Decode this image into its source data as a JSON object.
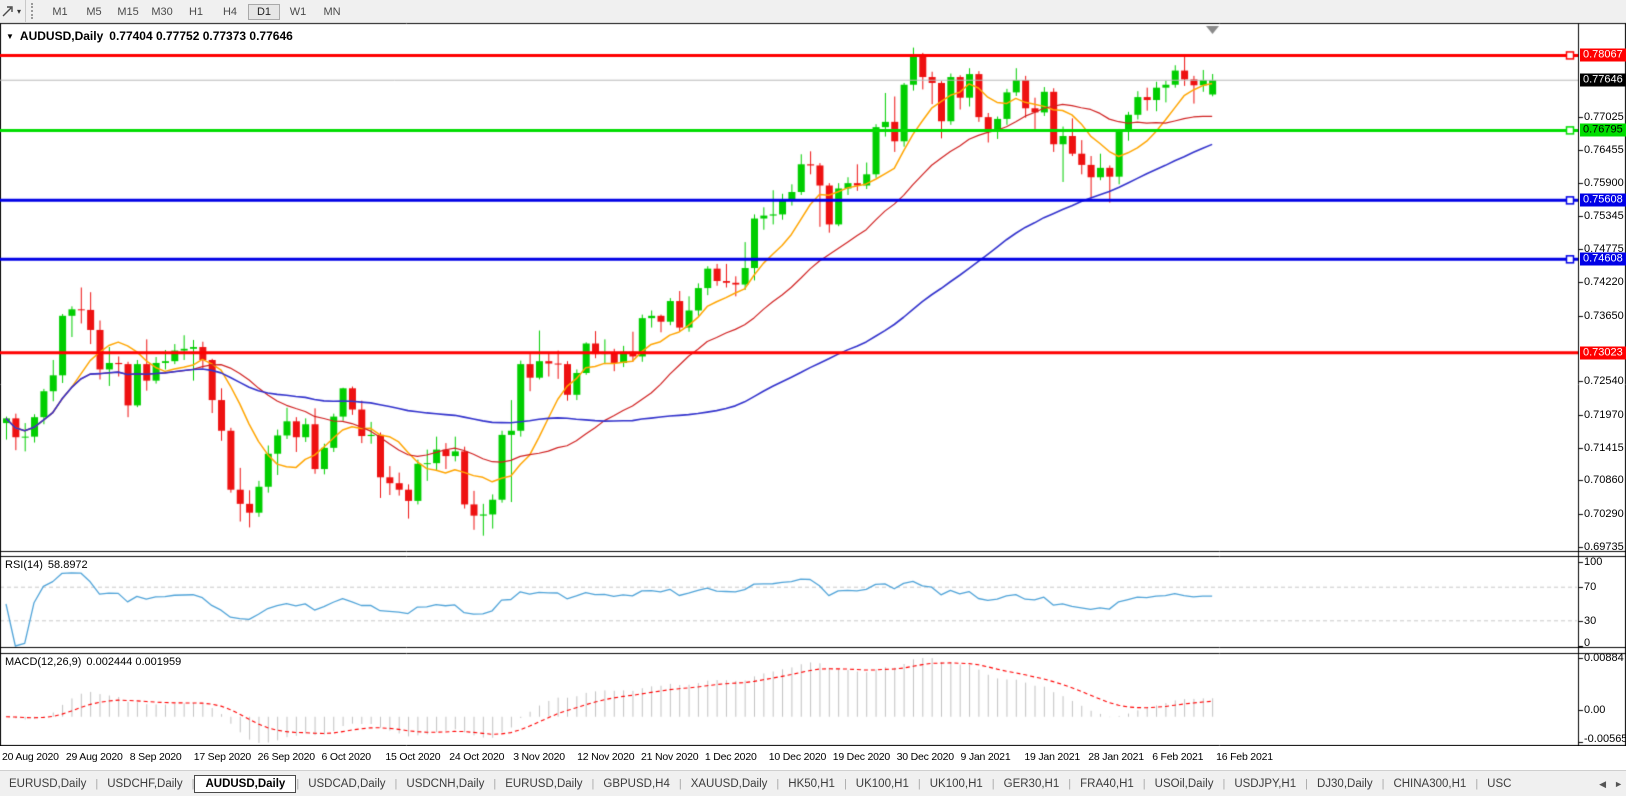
{
  "toolbar": {
    "dropdown_icon": "▾",
    "timeframes": [
      {
        "label": "M1",
        "active": false
      },
      {
        "label": "M5",
        "active": false
      },
      {
        "label": "M15",
        "active": false
      },
      {
        "label": "M30",
        "active": false
      },
      {
        "label": "H1",
        "active": false
      },
      {
        "label": "H4",
        "active": false
      },
      {
        "label": "D1",
        "active": true
      },
      {
        "label": "W1",
        "active": false
      },
      {
        "label": "MN",
        "active": false
      }
    ]
  },
  "chart": {
    "title": {
      "caret": "▼",
      "symbol": "AUDUSD,Daily",
      "ohlc": "0.77404 0.77752 0.77373 0.77646"
    }
  },
  "indicators": {
    "rsi": {
      "label": "RSI(14)",
      "value": "58.8972"
    },
    "macd": {
      "label": "MACD(12,26,9)",
      "value": "0.002444 0.001959"
    }
  },
  "chart_data": {
    "type": "candlestick",
    "symbol": "AUDUSD",
    "timeframe": "Daily",
    "current_bar": {
      "open": 0.77404,
      "high": 0.77752,
      "low": 0.77373,
      "close": 0.77646
    },
    "colors": {
      "up": "#00CE00",
      "down": "#EE1111"
    },
    "price_axis": {
      "ylim": {
        "top": 0.786,
        "bottom": 0.6966
      },
      "ticks": [
        "0.77025",
        "0.76455",
        "0.75900",
        "0.75345",
        "0.74775",
        "0.74220",
        "0.73650",
        "0.72540",
        "0.71970",
        "0.71415",
        "0.70860",
        "0.70290",
        "0.69735"
      ],
      "labels": [
        {
          "text": "0.78067",
          "price": 0.78067,
          "bg": "#FF0000",
          "fg": "#FFFFFF"
        },
        {
          "text": "0.77646",
          "price": 0.77646,
          "bg": "#000000",
          "fg": "#FFFFFF"
        },
        {
          "text": "0.76795",
          "price": 0.76795,
          "bg": "#00DD00",
          "fg": "#000000"
        },
        {
          "text": "0.75608",
          "price": 0.75608,
          "bg": "#0000E6",
          "fg": "#FFFFFF"
        },
        {
          "text": "0.74608",
          "price": 0.74608,
          "bg": "#0000E6",
          "fg": "#FFFFFF"
        },
        {
          "text": "0.73023",
          "price": 0.73023,
          "bg": "#FF0000",
          "fg": "#FFFFFF"
        }
      ]
    },
    "hlines": [
      {
        "price": 0.78067,
        "color": "#FF0000",
        "width": 3,
        "marker": true,
        "role": "resistance"
      },
      {
        "price": 0.76795,
        "color": "#00DD00",
        "width": 3,
        "marker": true,
        "role": "support"
      },
      {
        "price": 0.75608,
        "color": "#0000E6",
        "width": 3,
        "marker": true,
        "role": "support"
      },
      {
        "price": 0.74608,
        "color": "#0000E6",
        "width": 3,
        "marker": true,
        "role": "support"
      },
      {
        "price": 0.73023,
        "color": "#FF0000",
        "width": 3,
        "marker": false,
        "role": "support"
      }
    ],
    "current_price_line": {
      "price": 0.77646,
      "color": "#B8B8B8"
    },
    "moving_averages": [
      {
        "period": 8,
        "color": "#FFA500",
        "width": 1.5
      },
      {
        "period": 21,
        "color": "#D02020",
        "width": 1.2
      },
      {
        "period": 55,
        "color": "#3232CC",
        "width": 1.6
      }
    ],
    "rsi": {
      "period": 14,
      "color": "#4FA3D8",
      "levels": [
        70,
        30
      ],
      "axis_labels": [
        "100",
        "70",
        "30",
        "0"
      ]
    },
    "macd": {
      "fast": 12,
      "slow": 26,
      "signal": 9,
      "hist_color": "#C2C2C2",
      "signal_color": "#FF0000",
      "axis_labels": [
        {
          "text": "0.00884",
          "value": 0.00884
        },
        {
          "text": "0.00",
          "value": 0
        },
        {
          "text": "-0.005651",
          "value": -0.005651
        }
      ]
    },
    "date_labels": [
      "20 Aug 2020",
      "29 Aug 2020",
      "8 Sep 2020",
      "17 Sep 2020",
      "26 Sep 2020",
      "6 Oct 2020",
      "15 Oct 2020",
      "24 Oct 2020",
      "3 Nov 2020",
      "12 Nov 2020",
      "21 Nov 2020",
      "1 Dec 2020",
      "10 Dec 2020",
      "19 Dec 2020",
      "30 Dec 2020",
      "9 Jan 2021",
      "19 Jan 2021",
      "28 Jan 2021",
      "6 Feb 2021",
      "16 Feb 2021"
    ],
    "candles": [
      [
        0.7183,
        0.7194,
        0.7155,
        0.7191
      ],
      [
        0.7191,
        0.7199,
        0.7137,
        0.7159
      ],
      [
        0.7159,
        0.7183,
        0.7135,
        0.716
      ],
      [
        0.716,
        0.7198,
        0.715,
        0.7193
      ],
      [
        0.7193,
        0.7241,
        0.7181,
        0.7237
      ],
      [
        0.7237,
        0.729,
        0.722,
        0.7264
      ],
      [
        0.7264,
        0.7368,
        0.7251,
        0.7365
      ],
      [
        0.7365,
        0.7381,
        0.7329,
        0.7376
      ],
      [
        0.7376,
        0.7413,
        0.7352,
        0.7375
      ],
      [
        0.7375,
        0.7405,
        0.7317,
        0.7341
      ],
      [
        0.7341,
        0.7357,
        0.7257,
        0.7274
      ],
      [
        0.7274,
        0.7312,
        0.7246,
        0.7285
      ],
      [
        0.7285,
        0.7296,
        0.7262,
        0.7283
      ],
      [
        0.7283,
        0.7287,
        0.7193,
        0.7213
      ],
      [
        0.7213,
        0.729,
        0.721,
        0.7283
      ],
      [
        0.7283,
        0.7325,
        0.7238,
        0.7255
      ],
      [
        0.7255,
        0.7295,
        0.725,
        0.7285
      ],
      [
        0.7285,
        0.7307,
        0.7274,
        0.7288
      ],
      [
        0.7288,
        0.7317,
        0.7283,
        0.7306
      ],
      [
        0.7306,
        0.7332,
        0.729,
        0.7309
      ],
      [
        0.7309,
        0.7324,
        0.7255,
        0.7312
      ],
      [
        0.7312,
        0.7321,
        0.7276,
        0.729
      ],
      [
        0.729,
        0.7292,
        0.72,
        0.7222
      ],
      [
        0.7222,
        0.7242,
        0.7153,
        0.717
      ],
      [
        0.717,
        0.7175,
        0.7065,
        0.707
      ],
      [
        0.707,
        0.7107,
        0.7016,
        0.7046
      ],
      [
        0.7046,
        0.7069,
        0.7006,
        0.7031
      ],
      [
        0.7031,
        0.7085,
        0.7024,
        0.7075
      ],
      [
        0.7075,
        0.7145,
        0.7065,
        0.7131
      ],
      [
        0.7131,
        0.7172,
        0.7095,
        0.7162
      ],
      [
        0.7162,
        0.7209,
        0.7156,
        0.7186
      ],
      [
        0.7186,
        0.7193,
        0.7134,
        0.7159
      ],
      [
        0.7159,
        0.7191,
        0.7151,
        0.7181
      ],
      [
        0.7181,
        0.7208,
        0.7097,
        0.7105
      ],
      [
        0.7105,
        0.7148,
        0.7096,
        0.7141
      ],
      [
        0.7141,
        0.7199,
        0.7134,
        0.7194
      ],
      [
        0.7194,
        0.7243,
        0.7187,
        0.7242
      ],
      [
        0.7242,
        0.7245,
        0.7197,
        0.7206
      ],
      [
        0.7206,
        0.7221,
        0.7149,
        0.7161
      ],
      [
        0.7161,
        0.7185,
        0.7148,
        0.7163
      ],
      [
        0.7163,
        0.7167,
        0.7056,
        0.7091
      ],
      [
        0.7091,
        0.711,
        0.7061,
        0.7081
      ],
      [
        0.7081,
        0.7099,
        0.706,
        0.707
      ],
      [
        0.707,
        0.7079,
        0.7021,
        0.7051
      ],
      [
        0.7051,
        0.7121,
        0.7045,
        0.7114
      ],
      [
        0.7114,
        0.7138,
        0.7085,
        0.7115
      ],
      [
        0.7115,
        0.716,
        0.7103,
        0.7138
      ],
      [
        0.7138,
        0.7149,
        0.7105,
        0.7127
      ],
      [
        0.7127,
        0.716,
        0.7118,
        0.7135
      ],
      [
        0.7135,
        0.7143,
        0.7038,
        0.7045
      ],
      [
        0.7045,
        0.7068,
        0.7002,
        0.7026
      ],
      [
        0.7026,
        0.7046,
        0.6992,
        0.7028
      ],
      [
        0.7028,
        0.7062,
        0.7004,
        0.7053
      ],
      [
        0.7053,
        0.717,
        0.7048,
        0.7163
      ],
      [
        0.7163,
        0.7222,
        0.7049,
        0.717
      ],
      [
        0.717,
        0.7289,
        0.716,
        0.7283
      ],
      [
        0.7283,
        0.73,
        0.7237,
        0.726
      ],
      [
        0.726,
        0.734,
        0.7257,
        0.7288
      ],
      [
        0.7288,
        0.7302,
        0.7262,
        0.7284
      ],
      [
        0.7284,
        0.7306,
        0.7258,
        0.7283
      ],
      [
        0.7283,
        0.7288,
        0.7221,
        0.7231
      ],
      [
        0.7231,
        0.7274,
        0.7222,
        0.7268
      ],
      [
        0.7268,
        0.732,
        0.7265,
        0.7318
      ],
      [
        0.7318,
        0.7339,
        0.7293,
        0.73
      ],
      [
        0.73,
        0.7325,
        0.7283,
        0.7302
      ],
      [
        0.7302,
        0.7309,
        0.7271,
        0.7285
      ],
      [
        0.7285,
        0.7314,
        0.7278,
        0.7304
      ],
      [
        0.7304,
        0.7338,
        0.7287,
        0.7296
      ],
      [
        0.7296,
        0.7367,
        0.7287,
        0.7361
      ],
      [
        0.7361,
        0.7374,
        0.7345,
        0.7365
      ],
      [
        0.7365,
        0.7367,
        0.7337,
        0.7355
      ],
      [
        0.7355,
        0.7395,
        0.7349,
        0.739
      ],
      [
        0.739,
        0.7407,
        0.7339,
        0.7345
      ],
      [
        0.7345,
        0.7398,
        0.7338,
        0.7374
      ],
      [
        0.7374,
        0.742,
        0.7365,
        0.7412
      ],
      [
        0.7412,
        0.7449,
        0.74,
        0.7445
      ],
      [
        0.7445,
        0.7453,
        0.7416,
        0.7424
      ],
      [
        0.7424,
        0.7453,
        0.7413,
        0.7421
      ],
      [
        0.7421,
        0.7432,
        0.7398,
        0.7418
      ],
      [
        0.7418,
        0.749,
        0.7409,
        0.7446
      ],
      [
        0.7446,
        0.7537,
        0.7425,
        0.753
      ],
      [
        0.753,
        0.7549,
        0.7511,
        0.7535
      ],
      [
        0.7535,
        0.7578,
        0.752,
        0.7537
      ],
      [
        0.7537,
        0.7572,
        0.7528,
        0.7562
      ],
      [
        0.7562,
        0.7588,
        0.7552,
        0.7575
      ],
      [
        0.7575,
        0.7639,
        0.757,
        0.7622
      ],
      [
        0.7622,
        0.7644,
        0.7605,
        0.762
      ],
      [
        0.762,
        0.7624,
        0.7516,
        0.7586
      ],
      [
        0.7586,
        0.759,
        0.7506,
        0.752
      ],
      [
        0.752,
        0.759,
        0.7517,
        0.7581
      ],
      [
        0.7581,
        0.76,
        0.757,
        0.759
      ],
      [
        0.759,
        0.7622,
        0.7577,
        0.7586
      ],
      [
        0.7586,
        0.7625,
        0.758,
        0.7605
      ],
      [
        0.7605,
        0.769,
        0.7599,
        0.7685
      ],
      [
        0.7685,
        0.7743,
        0.7669,
        0.7694
      ],
      [
        0.7694,
        0.7737,
        0.7643,
        0.7661
      ],
      [
        0.7661,
        0.776,
        0.7652,
        0.7757
      ],
      [
        0.7757,
        0.782,
        0.7747,
        0.7805
      ],
      [
        0.7805,
        0.7811,
        0.7749,
        0.777
      ],
      [
        0.777,
        0.7779,
        0.7724,
        0.776
      ],
      [
        0.776,
        0.7763,
        0.7666,
        0.7695
      ],
      [
        0.7695,
        0.7776,
        0.7689,
        0.777
      ],
      [
        0.777,
        0.7773,
        0.7715,
        0.7735
      ],
      [
        0.7735,
        0.7785,
        0.772,
        0.7775
      ],
      [
        0.7775,
        0.778,
        0.7694,
        0.7702
      ],
      [
        0.7702,
        0.7709,
        0.7659,
        0.768
      ],
      [
        0.768,
        0.7703,
        0.7665,
        0.7699
      ],
      [
        0.7699,
        0.775,
        0.7689,
        0.7744
      ],
      [
        0.7744,
        0.7785,
        0.7738,
        0.7765
      ],
      [
        0.7765,
        0.7772,
        0.7701,
        0.7717
      ],
      [
        0.7717,
        0.7735,
        0.7682,
        0.771
      ],
      [
        0.771,
        0.7753,
        0.7704,
        0.7745
      ],
      [
        0.7745,
        0.7751,
        0.7643,
        0.7656
      ],
      [
        0.7656,
        0.7686,
        0.7592,
        0.767
      ],
      [
        0.767,
        0.77,
        0.7636,
        0.764
      ],
      [
        0.764,
        0.7663,
        0.7605,
        0.7621
      ],
      [
        0.7621,
        0.7636,
        0.7564,
        0.76
      ],
      [
        0.76,
        0.764,
        0.7595,
        0.7616
      ],
      [
        0.7616,
        0.762,
        0.7557,
        0.7601
      ],
      [
        0.7601,
        0.7682,
        0.7588,
        0.7678
      ],
      [
        0.7678,
        0.7711,
        0.7662,
        0.7706
      ],
      [
        0.7706,
        0.7746,
        0.7698,
        0.7736
      ],
      [
        0.7736,
        0.7752,
        0.7713,
        0.7731
      ],
      [
        0.7731,
        0.7762,
        0.7712,
        0.7752
      ],
      [
        0.7752,
        0.7764,
        0.7727,
        0.7757
      ],
      [
        0.7757,
        0.779,
        0.7752,
        0.7781
      ],
      [
        0.7781,
        0.7807,
        0.7755,
        0.7766
      ],
      [
        0.7766,
        0.7772,
        0.7725,
        0.7756
      ],
      [
        0.7756,
        0.7782,
        0.7745,
        0.7765
      ],
      [
        0.77404,
        0.77752,
        0.77373,
        0.77646
      ]
    ]
  },
  "tabs": {
    "scroll_left_icon": "◀",
    "scroll_right_icon": "►",
    "items": [
      {
        "label": "EURUSD,Daily",
        "active": false
      },
      {
        "label": "USDCHF,Daily",
        "active": false
      },
      {
        "label": "AUDUSD,Daily",
        "active": true
      },
      {
        "label": "USDCAD,Daily",
        "active": false
      },
      {
        "label": "USDCNH,Daily",
        "active": false
      },
      {
        "label": "EURUSD,Daily",
        "active": false
      },
      {
        "label": "GBPUSD,H4",
        "active": false
      },
      {
        "label": "XAUUSD,Daily",
        "active": false
      },
      {
        "label": "HK50,H1",
        "active": false
      },
      {
        "label": "UK100,H1",
        "active": false
      },
      {
        "label": "UK100,H1",
        "active": false
      },
      {
        "label": "GER30,H1",
        "active": false
      },
      {
        "label": "FRA40,H1",
        "active": false
      },
      {
        "label": "USOil,Daily",
        "active": false
      },
      {
        "label": "USDJPY,H1",
        "active": false
      },
      {
        "label": "DJ30,Daily",
        "active": false
      },
      {
        "label": "CHINA300,H1",
        "active": false
      },
      {
        "label": "USC",
        "active": false
      }
    ]
  }
}
